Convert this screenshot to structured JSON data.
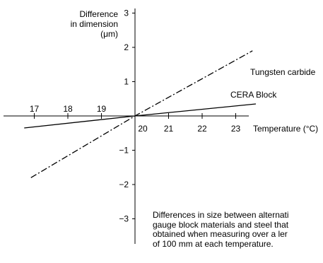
{
  "chart_data": {
    "type": "line",
    "title": "",
    "xlabel": "Temperature (°C)",
    "ylabel": [
      "Difference",
      "in dimension",
      "(μm)"
    ],
    "x_ticks": [
      17,
      18,
      19,
      20,
      21,
      22,
      23
    ],
    "y_ticks": [
      3,
      2,
      1,
      -1,
      -2,
      -3
    ],
    "xlim": [
      16.5,
      23.8
    ],
    "ylim": [
      -3.6,
      3.6
    ],
    "grid": false,
    "legend": "none",
    "series": [
      {
        "name": "Tungsten carbide",
        "line_style": "dash-dot",
        "color": "#000000",
        "x": [
          16.9,
          20,
          23.5
        ],
        "y": [
          -1.8,
          0,
          1.9
        ]
      },
      {
        "name": "CERA Block",
        "line_style": "solid",
        "color": "#000000",
        "x": [
          16.7,
          20,
          23.6
        ],
        "y": [
          -0.35,
          0,
          0.35
        ]
      }
    ],
    "annotation_lines": [
      "Differences in size between alternati",
      "gauge block materials and steel that",
      "obtained when measuring over a ler",
      "of 100 mm at each temperature."
    ]
  }
}
